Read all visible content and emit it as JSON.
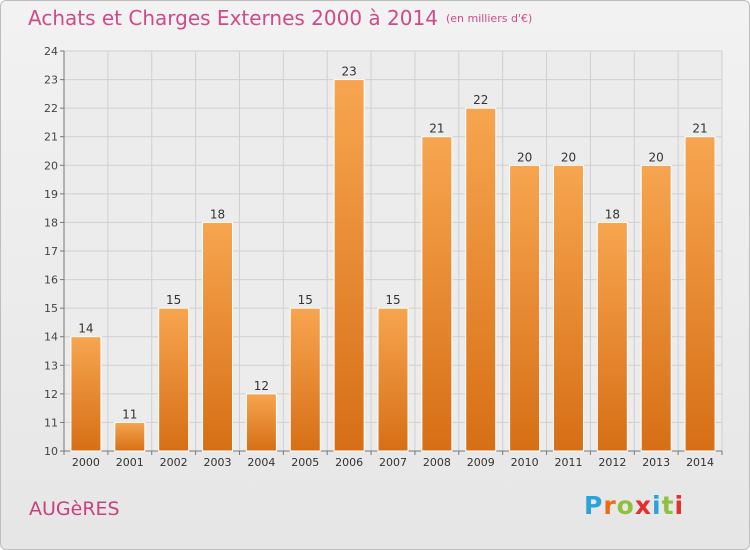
{
  "header": {
    "title": "Achats et Charges Externes 2000 à 2014",
    "subtitle": "(en milliers d'€)"
  },
  "footer": {
    "place": "AUGèRES",
    "brand": "Proxiti",
    "brand_colors": [
      "#2aa2db",
      "#ef6a14",
      "#8fc13e",
      "#e72d2d",
      "#2aa2db",
      "#8fc13e",
      "#e72d2d"
    ]
  },
  "chart_data": {
    "type": "bar",
    "categories": [
      "2000",
      "2001",
      "2002",
      "2003",
      "2004",
      "2005",
      "2006",
      "2007",
      "2008",
      "2009",
      "2010",
      "2011",
      "2012",
      "2013",
      "2014"
    ],
    "values": [
      14,
      11,
      15,
      18,
      12,
      15,
      23,
      15,
      21,
      22,
      20,
      20,
      18,
      20,
      21
    ],
    "data_labels": [
      "14",
      "11",
      "15",
      "18",
      "12",
      "15",
      "23",
      "15",
      "21",
      "22",
      "20",
      "20",
      "18",
      "20",
      "21"
    ],
    "ylim": [
      10,
      24
    ],
    "yticks": [
      10,
      11,
      12,
      13,
      14,
      15,
      16,
      17,
      18,
      19,
      20,
      21,
      22,
      23,
      24
    ],
    "grid": true,
    "bar_color_top": "#f7a550",
    "bar_color_bottom": "#d66f15",
    "title": "Achats et Charges Externes 2000 à 2014",
    "xlabel": "",
    "ylabel": ""
  }
}
